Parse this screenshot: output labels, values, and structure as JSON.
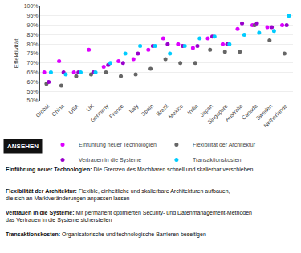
{
  "chart_data": {
    "type": "scatter",
    "y_label": "Effektivität",
    "categories": [
      "Global",
      "China",
      "USA",
      "UK",
      "Germany",
      "France",
      "Italy",
      "Spain",
      "Brazil",
      "Mexico",
      "India",
      "Japan",
      "Singapore",
      "Australia",
      "Canada",
      "Sweden",
      "Netherlands"
    ],
    "series": [
      {
        "name": "Einführung neuer Technologien",
        "color": "#dd00ff",
        "values": [
          65,
          71,
          65,
          77,
          68,
          71,
          72,
          77,
          83,
          80,
          78,
          83,
          80,
          88,
          90,
          89,
          90
        ]
      },
      {
        "name": "Flexibilität der Architektur",
        "color": "#666666",
        "values": [
          59,
          58,
          63,
          64,
          65,
          63,
          64,
          67,
          72,
          70,
          70,
          77,
          76,
          76,
          90,
          82,
          75
        ]
      },
      {
        "name": "Vertrauen in die Systeme",
        "color": "#9900cc",
        "values": [
          60,
          65,
          65,
          65,
          69,
          70,
          75,
          79,
          80,
          79,
          79,
          84,
          80,
          91,
          91,
          89,
          90
        ]
      },
      {
        "name": "Transaktionskosten",
        "color": "#00ccff",
        "values": [
          65,
          64,
          65,
          65,
          70,
          75,
          79,
          79,
          75,
          79,
          83,
          84,
          80,
          85,
          86,
          87,
          95
        ]
      }
    ],
    "ylim": [
      50,
      100
    ],
    "yticks": [
      {
        "value": 50,
        "label": "50%"
      },
      {
        "value": 55,
        "label": "55%"
      },
      {
        "value": 60,
        "label": "60%"
      },
      {
        "value": 65,
        "label": "65%"
      },
      {
        "value": 70,
        "label": "70%"
      },
      {
        "value": 75,
        "label": "75%"
      },
      {
        "value": 80,
        "label": "80%"
      },
      {
        "value": 85,
        "label": "85%"
      },
      {
        "value": 90,
        "label": "90%"
      },
      {
        "value": 95,
        "label": "95%"
      },
      {
        "value": 100,
        "label": "100%"
      }
    ],
    "grid": true,
    "legend": "bottom",
    "annotations": [
      "ANSEHEN",
      "Einführung neuer Technologien: Die Grenzen des Machbaren schnell und skalierbar verschieben",
      "Flexibilität der Architektur: Flexible, einheitliche und skalierbare Architekturen aufbauen, die sich an Marktveränderungen anpassen lassen",
      "Vertrauen in die Systeme: Mit permanent optimierten Security- und Datenmanagement-Methoden das Vertrauen in die Systeme sicherstellen",
      "Transaktionskosten: Organisatorische und technologische Barrieren beseitigen"
    ]
  }
}
